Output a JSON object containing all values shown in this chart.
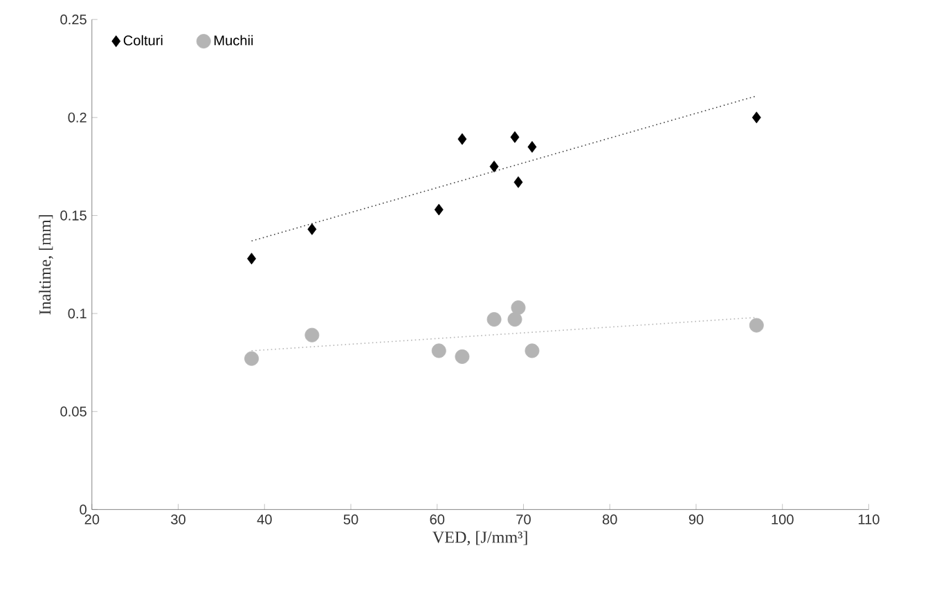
{
  "chart_data": {
    "type": "scatter",
    "xlabel": "VED, [J/mm³]",
    "ylabel": "Inaltime, [mm]",
    "xlim": [
      20,
      110
    ],
    "xticks": [
      20,
      30,
      40,
      50,
      60,
      70,
      80,
      90,
      100,
      110
    ],
    "ylim": [
      0,
      0.25
    ],
    "yticks": [
      0,
      0.05,
      0.1,
      0.15,
      0.2,
      0.25
    ],
    "grid": false,
    "legend": "top left",
    "series": [
      {
        "name": "Colturi",
        "color": "#000000",
        "marker": "diamond",
        "x": [
          38.5,
          45.5,
          60.2,
          62.9,
          66.6,
          69.0,
          69.4,
          71.0,
          97.0
        ],
        "values": [
          0.128,
          0.143,
          0.153,
          0.189,
          0.175,
          0.19,
          0.167,
          0.185,
          0.2
        ]
      },
      {
        "name": "Muchii",
        "color": "#b4b4b4",
        "marker": "circle",
        "x": [
          38.5,
          45.5,
          60.2,
          62.9,
          66.6,
          69.0,
          69.4,
          71.0,
          97.0
        ],
        "values": [
          0.077,
          0.089,
          0.081,
          0.078,
          0.097,
          0.097,
          0.103,
          0.081,
          0.094
        ]
      },
      {
        "type": "line",
        "color": "#404040",
        "line_style": "dotted",
        "marker": "none",
        "x": [
          38.5,
          97.0
        ],
        "values": [
          0.137,
          0.211
        ]
      },
      {
        "type": "line",
        "color": "#b4b4b4",
        "line_style": "dotted",
        "marker": "none",
        "x": [
          38.5,
          97.0
        ],
        "values": [
          0.081,
          0.098
        ]
      }
    ]
  }
}
